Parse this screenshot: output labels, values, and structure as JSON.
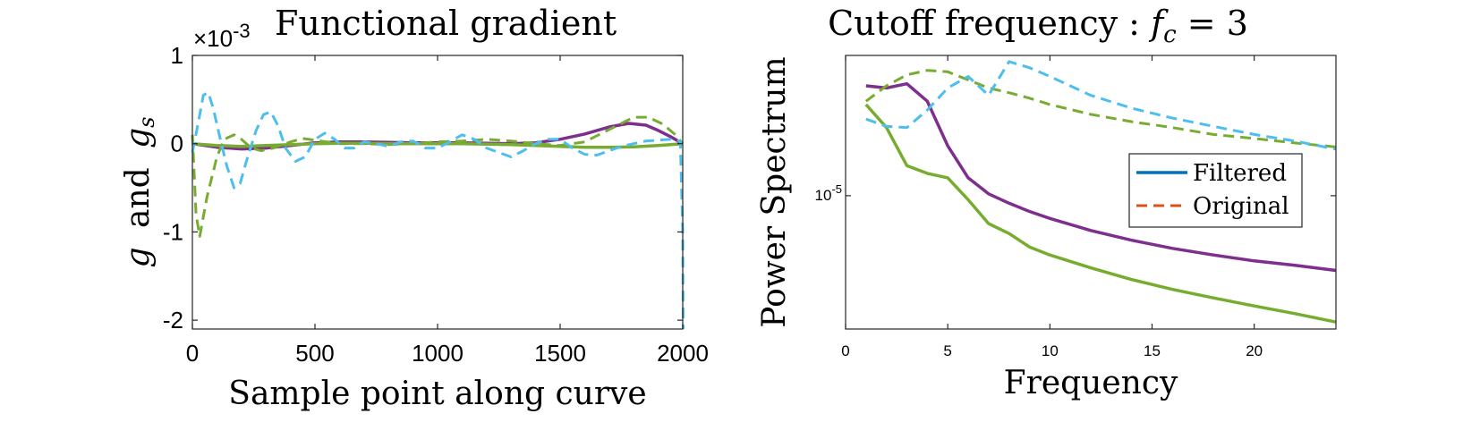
{
  "chart_data": [
    {
      "type": "line",
      "title": "Functional gradient",
      "exponent_label": "×10",
      "exponent_power": "-3",
      "xlabel": "Sample point along curve",
      "ylabel_main": "g",
      "ylabel_and": "and",
      "ylabel_sub_base": "g",
      "ylabel_sub": "s",
      "xlim": [
        0,
        2000
      ],
      "ylim": [
        -2.1,
        1.0
      ],
      "xticks": [
        0,
        500,
        1000,
        1500,
        2000
      ],
      "xtick_labels": [
        "0",
        "500",
        "1000",
        "1500",
        "2000"
      ],
      "yticks": [
        1,
        0,
        -1,
        -2
      ],
      "ytick_labels": [
        "1",
        "0",
        "-1",
        "-2"
      ],
      "grid": false,
      "series": [
        {
          "name": "purple-filtered",
          "color": "#7E2F8E",
          "style": "solid",
          "x": [
            0,
            100,
            200,
            300,
            400,
            500,
            600,
            700,
            800,
            900,
            1000,
            1100,
            1200,
            1300,
            1400,
            1500,
            1600,
            1700,
            1780,
            1850,
            1900,
            1950,
            2000
          ],
          "y": [
            0,
            -0.04,
            -0.06,
            -0.05,
            -0.02,
            0.01,
            0.02,
            0.02,
            0.015,
            0.01,
            0.01,
            0.01,
            0.005,
            0,
            0.01,
            0.05,
            0.11,
            0.19,
            0.23,
            0.21,
            0.15,
            0.08,
            0
          ]
        },
        {
          "name": "green-filtered",
          "color": "#77AC30",
          "style": "solid",
          "x": [
            0,
            100,
            200,
            300,
            400,
            500,
            600,
            700,
            800,
            900,
            1000,
            1100,
            1200,
            1300,
            1400,
            1500,
            1600,
            1700,
            1800,
            1900,
            1950,
            2000
          ],
          "y": [
            0,
            -0.02,
            -0.03,
            -0.02,
            -0.01,
            0,
            0.005,
            0.005,
            0,
            0,
            0,
            0,
            -0.005,
            -0.01,
            -0.02,
            -0.03,
            -0.04,
            -0.04,
            -0.035,
            -0.02,
            -0.01,
            0
          ]
        },
        {
          "name": "green-original",
          "color": "#77AC30",
          "style": "dashed",
          "x": [
            0,
            15,
            30,
            60,
            100,
            130,
            170,
            200,
            240,
            280,
            330,
            400,
            450,
            500,
            600,
            700,
            800,
            900,
            1000,
            1100,
            1200,
            1300,
            1400,
            1500,
            1600,
            1700,
            1800,
            1860,
            1920,
            1970,
            2000
          ],
          "y": [
            0.1,
            -0.8,
            -1.05,
            -0.6,
            -0.15,
            0.05,
            0.1,
            0.05,
            -0.05,
            -0.08,
            -0.05,
            0.02,
            0.06,
            0.04,
            0,
            0,
            -0.01,
            0,
            0.02,
            0.03,
            0.05,
            0.03,
            0,
            -0.02,
            0.02,
            0.16,
            0.3,
            0.3,
            0.22,
            0.1,
            0
          ]
        },
        {
          "name": "cyan-original",
          "color": "#4DBEEE",
          "style": "dashed",
          "x": [
            0,
            25,
            45,
            65,
            85,
            110,
            140,
            170,
            195,
            220,
            260,
            290,
            320,
            350,
            380,
            420,
            460,
            500,
            540,
            580,
            620,
            660,
            700,
            750,
            800,
            850,
            900,
            950,
            1000,
            1050,
            1100,
            1150,
            1200,
            1250,
            1300,
            1350,
            1400,
            1450,
            1500,
            1550,
            1600,
            1650,
            1700,
            1750,
            1800,
            1850,
            1900,
            1950,
            1990,
            2000,
            2002
          ],
          "y": [
            -0.1,
            0.25,
            0.55,
            0.58,
            0.4,
            0.1,
            -0.25,
            -0.5,
            -0.45,
            -0.2,
            0.15,
            0.33,
            0.36,
            0.2,
            -0.05,
            -0.2,
            -0.15,
            0.05,
            0.12,
            0.05,
            -0.05,
            -0.05,
            0.02,
            0,
            -0.03,
            0.02,
            0.03,
            -0.05,
            -0.05,
            0.02,
            0.1,
            0.05,
            -0.05,
            -0.1,
            -0.15,
            -0.08,
            0,
            0.05,
            0.05,
            -0.05,
            -0.12,
            -0.13,
            -0.08,
            -0.03,
            0,
            0.03,
            0.04,
            0.05,
            0.03,
            -1.0,
            -2.1
          ]
        }
      ]
    },
    {
      "type": "line",
      "title_prefix": "Cutoff frequency : ",
      "title_var": "f",
      "title_sub": "c",
      "title_suffix": " = 3",
      "xlabel": "Frequency",
      "ylabel": "Power Spectrum",
      "xlim": [
        0,
        24
      ],
      "yscale": "log",
      "ylim": [
        3e-07,
        0.0004
      ],
      "xticks": [
        0,
        5,
        10,
        15,
        20
      ],
      "xtick_labels": [
        "0",
        "5",
        "10",
        "15",
        "20"
      ],
      "yticks": [
        1e-05
      ],
      "ytick_base": "10",
      "ytick_power": "-5",
      "grid": false,
      "legend": {
        "position": "right-middle",
        "entries": [
          {
            "label": "Filtered",
            "color": "#0072BD",
            "style": "solid"
          },
          {
            "label": "Original",
            "color": "#D95319",
            "style": "dashed"
          }
        ]
      },
      "series": [
        {
          "name": "purple-filtered",
          "color": "#7E2F8E",
          "style": "solid",
          "x": [
            1,
            2,
            3,
            4,
            5,
            6,
            7,
            8,
            9,
            10,
            12,
            14,
            16,
            18,
            20,
            22,
            24
          ],
          "y": [
            0.00018,
            0.00017,
            0.00019,
            0.00012,
            3.7e-05,
            1.6e-05,
            1.05e-05,
            8.2e-06,
            6.6e-06,
            5.5e-06,
            4e-06,
            3.1e-06,
            2.5e-06,
            2.1e-06,
            1.8e-06,
            1.6e-06,
            1.4e-06
          ]
        },
        {
          "name": "green-filtered",
          "color": "#77AC30",
          "style": "solid",
          "x": [
            1,
            2,
            3,
            4,
            5,
            6,
            7,
            8,
            9,
            10,
            12,
            14,
            16,
            18,
            20,
            22,
            24
          ],
          "y": [
            0.00011,
            6e-05,
            2.2e-05,
            1.8e-05,
            1.6e-05,
            9e-06,
            4.8e-06,
            3.7e-06,
            2.6e-06,
            2.1e-06,
            1.5e-06,
            1.1e-06,
            8.5e-07,
            6.8e-07,
            5.5e-07,
            4.5e-07,
            3.6e-07
          ]
        },
        {
          "name": "green-original",
          "color": "#77AC30",
          "style": "dashed",
          "x": [
            1,
            2,
            3,
            4,
            5,
            6,
            7,
            8,
            9,
            10,
            12,
            14,
            16,
            18,
            20,
            22,
            24
          ],
          "y": [
            0.00012,
            0.00018,
            0.00024,
            0.00027,
            0.00026,
            0.00021,
            0.00017,
            0.00015,
            0.00013,
            0.00011,
            8.5e-05,
            7e-05,
            6e-05,
            5e-05,
            4.5e-05,
            4e-05,
            3.6e-05
          ]
        },
        {
          "name": "cyan-original",
          "color": "#4DBEEE",
          "style": "dashed",
          "x": [
            1,
            2,
            3,
            4,
            5,
            6,
            7,
            8,
            9,
            10,
            12,
            14,
            16,
            18,
            20,
            22,
            24
          ],
          "y": [
            7.5e-05,
            6.2e-05,
            6e-05,
            9.5e-05,
            0.00017,
            0.00023,
            0.00014,
            0.00034,
            0.00029,
            0.00023,
            0.00014,
            0.0001,
            7.7e-05,
            6.2e-05,
            5e-05,
            4.2e-05,
            3.4e-05
          ]
        }
      ]
    }
  ]
}
